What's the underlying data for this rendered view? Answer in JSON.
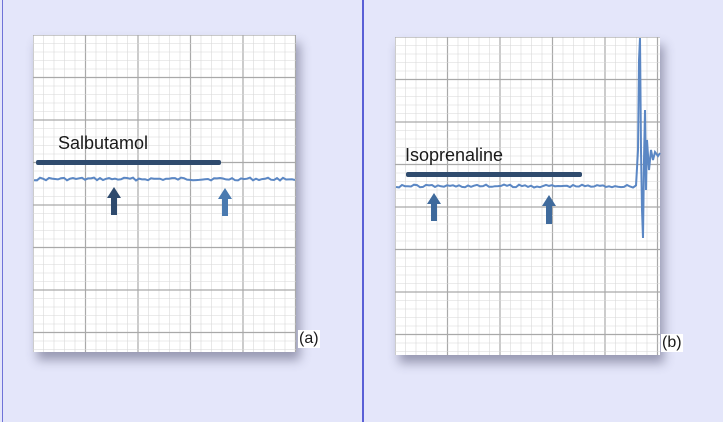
{
  "panels": [
    {
      "id": "a",
      "drug_label": "Salbutamol",
      "panel_letter": "(a)"
    },
    {
      "id": "b",
      "drug_label": "Isoprenaline",
      "panel_letter": "(b)"
    }
  ],
  "colors": {
    "background": "#e4e6fa",
    "divider": "#5a5fd6",
    "trace": "#5b87c4",
    "bar": "#2f4b6e",
    "arrow": "#3f6a9c",
    "grid_minor": "#d8d8d8",
    "grid_major": "#a9a9a9"
  }
}
